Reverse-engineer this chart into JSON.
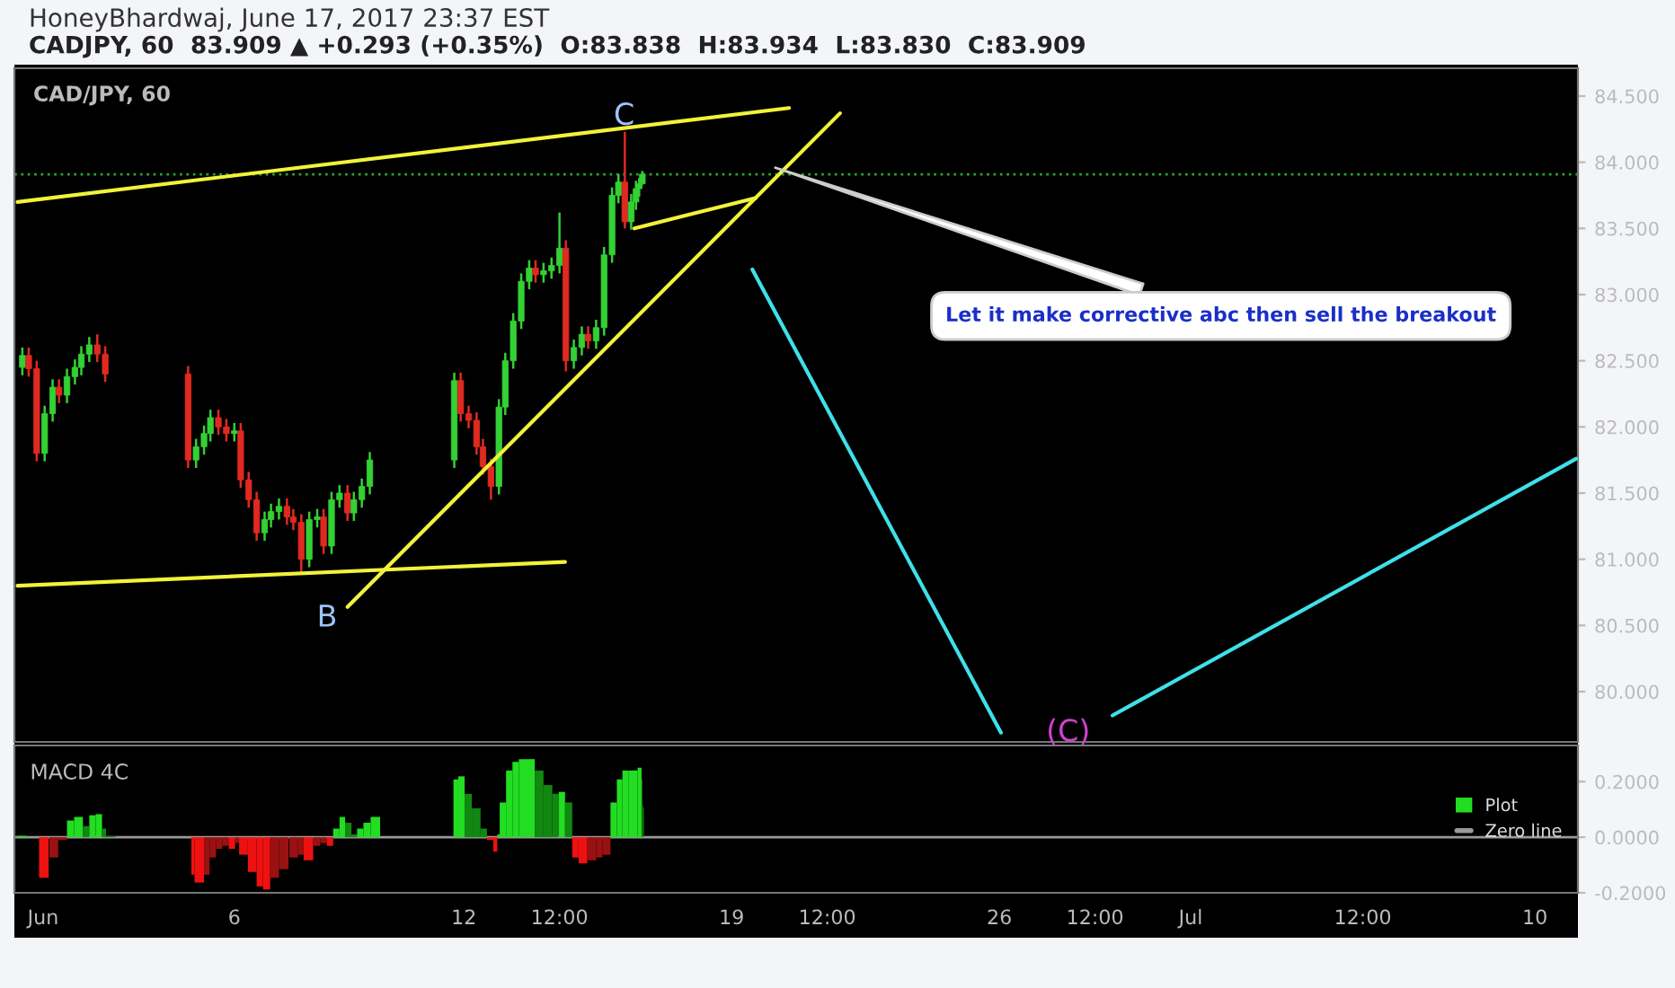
{
  "chart_data": [
    {
      "type": "candlestick",
      "title": "HoneyBhardwaj, June 17, 2017 23:37 EST",
      "subtitle": "CADJPY, 60  83.909 ▲ +0.293 (+0.35%)  O:83.838  H:83.934  L:83.830  C:83.909",
      "x": [
        "2017-05-31T11:00",
        "2017-05-31T15:00",
        "2017-05-31T20:00",
        "2017-06-01T01:00",
        "2017-06-01T06:00",
        "2017-06-01T10:00",
        "2017-06-01T15:00",
        "2017-06-01T20:00",
        "2017-06-02T00:00",
        "2017-06-02T05:00",
        "2017-06-02T10:00",
        "2017-06-02T15:00",
        "2017-06-04T19:00",
        "2017-06-05T00:00",
        "2017-06-05T05:00",
        "2017-06-05T09:00",
        "2017-06-05T14:00",
        "2017-06-05T19:00",
        "2017-06-06T00:00",
        "2017-06-06T04:00",
        "2017-06-06T09:00",
        "2017-06-06T14:00",
        "2017-06-06T19:00",
        "2017-06-06T23:00",
        "2017-06-07T04:00",
        "2017-06-07T09:00",
        "2017-06-07T13:00",
        "2017-06-07T18:00",
        "2017-06-07T23:00",
        "2017-06-08T04:00",
        "2017-06-08T08:00",
        "2017-06-08T13:00",
        "2017-06-08T18:00",
        "2017-06-08T23:00",
        "2017-06-09T03:00",
        "2017-06-09T08:00",
        "2017-06-09T13:00",
        "2017-06-11T18:00",
        "2017-06-11T22:00",
        "2017-06-12T03:00",
        "2017-06-12T08:00",
        "2017-06-12T12:00",
        "2017-06-12T17:00",
        "2017-06-12T22:00",
        "2017-06-13T02:00",
        "2017-06-13T07:00",
        "2017-06-13T12:00",
        "2017-06-13T17:00",
        "2017-06-13T21:00",
        "2017-06-14T02:00",
        "2017-06-14T07:00",
        "2017-06-14T12:00",
        "2017-06-14T16:00",
        "2017-06-14T21:00",
        "2017-06-15T02:00",
        "2017-06-15T06:00",
        "2017-06-15T11:00",
        "2017-06-15T16:00",
        "2017-06-15T21:00",
        "2017-06-16T01:00",
        "2017-06-16T05:00",
        "2017-06-16T09:00",
        "2017-06-16T12:00",
        "2017-06-16T14:00",
        "2017-06-16T16:00"
      ],
      "ohlc": [
        [
          82.45,
          82.6,
          82.39,
          82.54
        ],
        [
          82.54,
          82.6,
          82.38,
          82.44
        ],
        [
          82.44,
          82.5,
          81.74,
          81.8
        ],
        [
          81.8,
          82.16,
          81.74,
          82.1
        ],
        [
          82.1,
          82.36,
          82.04,
          82.3
        ],
        [
          82.3,
          82.36,
          82.18,
          82.24
        ],
        [
          82.24,
          82.44,
          82.18,
          82.38
        ],
        [
          82.38,
          82.51,
          82.32,
          82.45
        ],
        [
          82.45,
          82.61,
          82.39,
          82.55
        ],
        [
          82.55,
          82.68,
          82.49,
          82.62
        ],
        [
          82.62,
          82.7,
          82.49,
          82.55
        ],
        [
          82.55,
          82.61,
          82.34,
          82.4
        ],
        [
          82.4,
          82.46,
          81.69,
          81.75
        ],
        [
          81.75,
          81.91,
          81.69,
          81.85
        ],
        [
          81.85,
          82.01,
          81.79,
          81.95
        ],
        [
          81.95,
          82.13,
          81.89,
          82.07
        ],
        [
          82.07,
          82.13,
          81.94,
          82.0
        ],
        [
          82.0,
          82.06,
          81.89,
          81.95
        ],
        [
          81.95,
          82.03,
          81.89,
          81.97
        ],
        [
          81.97,
          82.03,
          81.54,
          81.6
        ],
        [
          81.6,
          81.66,
          81.39,
          81.45
        ],
        [
          81.45,
          81.51,
          81.14,
          81.2
        ],
        [
          81.2,
          81.36,
          81.14,
          81.3
        ],
        [
          81.3,
          81.42,
          81.24,
          81.36
        ],
        [
          81.36,
          81.46,
          81.3,
          81.4
        ],
        [
          81.4,
          81.46,
          81.26,
          81.32
        ],
        [
          81.32,
          81.38,
          81.22,
          81.28
        ],
        [
          81.28,
          81.34,
          80.89,
          81.0
        ],
        [
          81.0,
          81.36,
          80.94,
          81.3
        ],
        [
          81.3,
          81.38,
          81.24,
          81.32
        ],
        [
          81.32,
          81.38,
          81.04,
          81.1
        ],
        [
          81.1,
          81.51,
          81.04,
          81.45
        ],
        [
          81.45,
          81.56,
          81.39,
          81.5
        ],
        [
          81.5,
          81.56,
          81.29,
          81.35
        ],
        [
          81.35,
          81.51,
          81.29,
          81.45
        ],
        [
          81.45,
          81.61,
          81.39,
          81.55
        ],
        [
          81.55,
          81.81,
          81.49,
          81.75
        ],
        [
          81.75,
          82.41,
          81.69,
          82.35
        ],
        [
          82.35,
          82.41,
          82.04,
          82.1
        ],
        [
          82.1,
          82.16,
          81.99,
          82.05
        ],
        [
          82.05,
          82.11,
          81.79,
          81.85
        ],
        [
          81.85,
          81.91,
          81.64,
          81.7
        ],
        [
          81.7,
          81.76,
          81.45,
          81.55
        ],
        [
          81.55,
          82.21,
          81.49,
          82.15
        ],
        [
          82.15,
          82.56,
          82.09,
          82.5
        ],
        [
          82.5,
          82.86,
          82.44,
          82.8
        ],
        [
          82.8,
          83.16,
          82.74,
          83.1
        ],
        [
          83.1,
          83.26,
          83.04,
          83.2
        ],
        [
          83.2,
          83.26,
          83.09,
          83.15
        ],
        [
          83.15,
          83.24,
          83.09,
          83.18
        ],
        [
          83.18,
          83.28,
          83.12,
          83.22
        ],
        [
          83.22,
          83.62,
          83.16,
          83.35
        ],
        [
          83.35,
          83.41,
          82.42,
          82.5
        ],
        [
          82.5,
          82.66,
          82.44,
          82.6
        ],
        [
          82.6,
          82.76,
          82.54,
          82.7
        ],
        [
          82.7,
          82.76,
          82.59,
          82.65
        ],
        [
          82.65,
          82.81,
          82.59,
          82.75
        ],
        [
          82.75,
          83.36,
          82.69,
          83.3
        ],
        [
          83.3,
          83.81,
          83.24,
          83.75
        ],
        [
          83.75,
          83.91,
          83.69,
          83.85
        ],
        [
          83.85,
          84.23,
          83.5,
          83.55
        ],
        [
          83.55,
          83.76,
          83.49,
          83.7
        ],
        [
          83.7,
          83.86,
          83.64,
          83.8
        ],
        [
          83.8,
          83.88,
          83.74,
          83.838
        ],
        [
          83.838,
          83.934,
          83.83,
          83.909
        ]
      ],
      "series": [
        {
          "type": "line",
          "color": "#f2f23a",
          "x": [
            "2017-05-31T08:00",
            "2017-06-20T12:00"
          ],
          "values": [
            83.7,
            84.41
          ]
        },
        {
          "type": "line",
          "color": "#f2f23a",
          "x": [
            "2017-05-31T08:00",
            "2017-06-14T15:30"
          ],
          "values": [
            80.8,
            80.98
          ]
        },
        {
          "type": "line",
          "color": "#f2f23a",
          "x": [
            "2017-06-08T23:00",
            "2017-06-21T20:00"
          ],
          "values": [
            80.64,
            84.37
          ]
        },
        {
          "type": "line",
          "color": "#f2f23a",
          "x": [
            "2017-06-16T11:00",
            "2017-06-19T15:00"
          ],
          "values": [
            83.5,
            83.73
          ]
        },
        {
          "type": "line",
          "color": "#3fe0e8",
          "x": [
            "2017-06-19T13:00",
            "2017-06-26T01:00"
          ],
          "values": [
            83.19,
            79.69
          ]
        },
        {
          "type": "line",
          "color": "#3fe0e8",
          "x": [
            "2017-06-28T23:00",
            "2017-07-11T02:00"
          ],
          "values": [
            79.82,
            81.76
          ]
        }
      ],
      "ref_lines": [
        {
          "axis": "y",
          "value": 83.909,
          "color": "#2ea02e",
          "line_style": "dotted"
        }
      ],
      "annotations": [
        "CAD/JPY, 60",
        "C",
        "B",
        "(C)",
        {
          "text": "Let it make corrective abc then sell the breakout",
          "x": "2017-06-20T00:30",
          "y": 83.97
        }
      ],
      "xlim": [
        "2017-05-31T06:00",
        "2017-07-11T03:00"
      ],
      "ylim": [
        79.62,
        84.71
      ],
      "yticks": [
        {
          "value": 80,
          "label": "80.000"
        },
        {
          "value": 80.5,
          "label": "80.500"
        },
        {
          "value": 81,
          "label": "81.000"
        },
        {
          "value": 81.5,
          "label": "81.500"
        },
        {
          "value": 82,
          "label": "82.000"
        },
        {
          "value": 82.5,
          "label": "82.500"
        },
        {
          "value": 83,
          "label": "83.000"
        },
        {
          "value": 83.5,
          "label": "83.500"
        },
        {
          "value": 84,
          "label": "84.000"
        },
        {
          "value": 84.5,
          "label": "84.500"
        }
      ],
      "tick_labels": "y"
    },
    {
      "type": "bar",
      "title": "MACD 4C",
      "x": [
        "2017-05-31T07:30",
        "2017-05-31T21:30",
        "2017-06-01T04:00",
        "2017-06-01T09:30",
        "2017-06-01T15:00",
        "2017-06-01T19:30",
        "2017-06-02T01:00",
        "2017-06-02T05:00",
        "2017-06-02T09:00",
        "2017-06-02T13:00",
        "2017-06-02T15:30",
        "2017-06-04T21:00",
        "2017-06-04T23:00",
        "2017-06-05T05:00",
        "2017-06-05T08:30",
        "2017-06-05T12:30",
        "2017-06-05T16:30",
        "2017-06-05T20:30",
        "2017-06-06T00:30",
        "2017-06-06T03:00",
        "2017-06-06T08:30",
        "2017-06-06T14:00",
        "2017-06-06T18:00",
        "2017-06-06T22:30",
        "2017-06-07T04:00",
        "2017-06-07T10:30",
        "2017-06-07T16:00",
        "2017-06-07T19:30",
        "2017-06-08T01:30",
        "2017-06-08T06:00",
        "2017-06-08T10:00",
        "2017-06-08T14:00",
        "2017-06-08T18:00",
        "2017-06-08T21:30",
        "2017-06-09T01:30",
        "2017-06-09T05:00",
        "2017-06-09T09:00",
        "2017-06-09T13:30",
        "2017-06-11T17:30",
        "2017-06-11T20:30",
        "2017-06-12T00:30",
        "2017-06-12T05:00",
        "2017-06-12T10:30",
        "2017-06-12T14:30",
        "2017-06-12T18:30",
        "2017-06-12T21:00",
        "2017-06-12T22:30",
        "2017-06-13T02:30",
        "2017-06-13T06:30",
        "2017-06-13T10:30",
        "2017-06-13T16:30",
        "2017-06-13T20:30",
        "2017-06-14T02:00",
        "2017-06-14T07:30",
        "2017-06-14T11:30",
        "2017-06-14T15:30",
        "2017-06-14T20:00",
        "2017-06-15T00:00",
        "2017-06-15T05:30",
        "2017-06-15T11:00",
        "2017-06-15T15:00",
        "2017-06-15T20:00",
        "2017-06-16T00:00",
        "2017-06-16T03:30",
        "2017-06-16T07:30",
        "2017-06-16T13:00",
        "2017-06-16T15:30",
        "2017-06-16T16:00",
        "2017-06-16T16:30"
      ],
      "series": [
        {
          "name": "Plot",
          "color": "#22dd22",
          "values": [
            0.005,
            -0.146,
            -0.073,
            -0.01,
            0.06,
            0.073,
            0.04,
            0.079,
            0.083,
            0.031,
            0.004,
            -0.135,
            -0.163,
            -0.135,
            -0.073,
            -0.042,
            -0.031,
            -0.042,
            -0.021,
            -0.063,
            -0.125,
            -0.177,
            -0.188,
            -0.146,
            -0.115,
            -0.073,
            -0.063,
            -0.083,
            -0.031,
            -0.021,
            -0.031,
            0.031,
            0.073,
            0.052,
            0.01,
            0.031,
            0.052,
            0.073,
            0.208,
            0.219,
            0.156,
            0.104,
            0.031,
            -0.01,
            -0.052,
            0.01,
            0.125,
            0.24,
            0.271,
            0.281,
            0.281,
            0.24,
            0.188,
            0.156,
            0.163,
            0.125,
            -0.073,
            -0.094,
            -0.083,
            -0.073,
            -0.063,
            0.125,
            0.208,
            0.24,
            0.24,
            0.25,
            0.208,
            0.115,
            0.104
          ],
          "colors": [
            "#22dd22",
            "#ee1111",
            "#991111",
            "#991111",
            "#22dd22",
            "#22dd22",
            "#118811",
            "#22dd22",
            "#22dd22",
            "#118811",
            "#118811",
            "#ee1111",
            "#ee1111",
            "#991111",
            "#991111",
            "#991111",
            "#991111",
            "#ee1111",
            "#991111",
            "#ee1111",
            "#ee1111",
            "#ee1111",
            "#ee1111",
            "#991111",
            "#991111",
            "#991111",
            "#991111",
            "#ee1111",
            "#991111",
            "#991111",
            "#ee1111",
            "#22dd22",
            "#22dd22",
            "#118811",
            "#118811",
            "#22dd22",
            "#22dd22",
            "#22dd22",
            "#22dd22",
            "#22dd22",
            "#118811",
            "#118811",
            "#118811",
            "#ee1111",
            "#ee1111",
            "#22dd22",
            "#22dd22",
            "#22dd22",
            "#22dd22",
            "#22dd22",
            "#22dd22",
            "#118811",
            "#118811",
            "#118811",
            "#22dd22",
            "#118811",
            "#ee1111",
            "#ee1111",
            "#991111",
            "#991111",
            "#991111",
            "#22dd22",
            "#22dd22",
            "#22dd22",
            "#22dd22",
            "#22dd22",
            "#118811",
            "#118811",
            "#118811"
          ]
        }
      ],
      "ref_lines": [
        {
          "axis": "y",
          "value": 0,
          "label": "Zero line",
          "color": "#999999"
        }
      ],
      "legend": "right",
      "xlim": [
        "2017-05-31T06:00",
        "2017-07-11T03:00"
      ],
      "ylim": [
        -0.2,
        0.33
      ],
      "xticks": [
        {
          "value": "2017-06-01",
          "label": "Jun"
        },
        {
          "value": "2017-06-06",
          "label": "6"
        },
        {
          "value": "2017-06-12",
          "label": "12"
        },
        {
          "value": "2017-06-14T12:00",
          "label": "12:00"
        },
        {
          "value": "2017-06-19",
          "label": "19"
        },
        {
          "value": "2017-06-21T12:00",
          "label": "12:00"
        },
        {
          "value": "2017-06-26",
          "label": "26"
        },
        {
          "value": "2017-06-28T12:00",
          "label": "12:00"
        },
        {
          "value": "2017-07-01",
          "label": "Jul"
        },
        {
          "value": "2017-07-05T12:00",
          "label": "12:00"
        },
        {
          "value": "2017-07-10",
          "label": "10"
        }
      ],
      "yticks": [
        {
          "value": 0.2,
          "label": "0.2000"
        },
        {
          "value": 0,
          "label": "0.0000"
        },
        {
          "value": -0.2,
          "label": "-0.2000"
        }
      ]
    }
  ]
}
